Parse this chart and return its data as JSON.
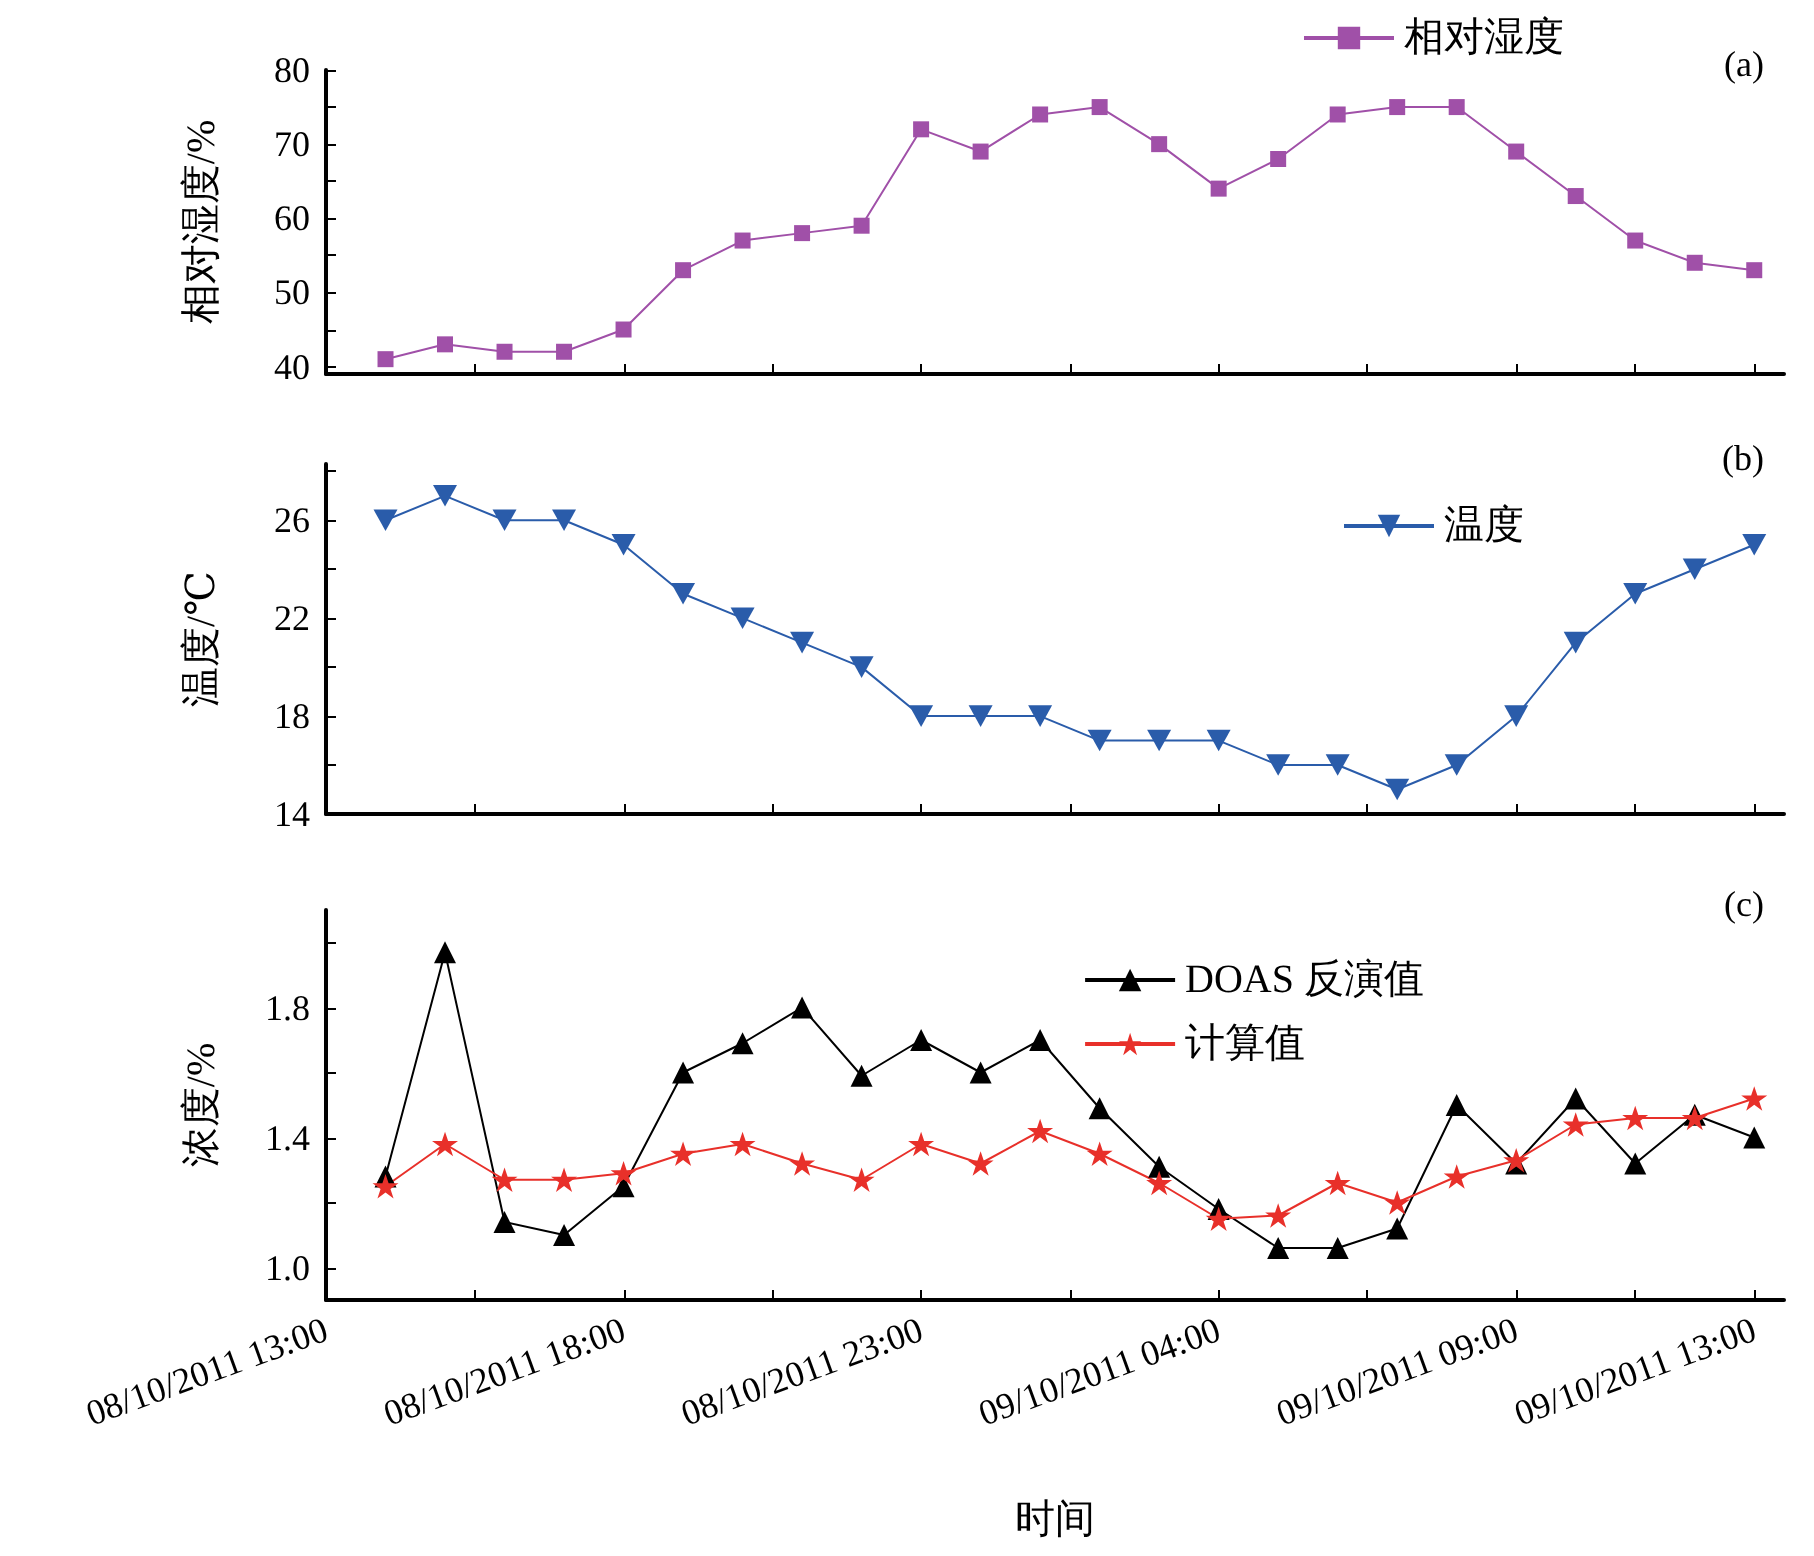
{
  "chart_data": [
    {
      "type": "line",
      "ylabel": "相对湿度/%",
      "annotations": [
        "(a)"
      ],
      "x": [
        "2011-10-08T14:00",
        "2011-10-08T15:00",
        "2011-10-08T16:00",
        "2011-10-08T17:00",
        "2011-10-08T18:00",
        "2011-10-08T19:00",
        "2011-10-08T20:00",
        "2011-10-08T21:00",
        "2011-10-08T22:00",
        "2011-10-08T23:00",
        "2011-10-09T00:00",
        "2011-10-09T01:00",
        "2011-10-09T02:00",
        "2011-10-09T03:00",
        "2011-10-09T04:00",
        "2011-10-09T05:00",
        "2011-10-09T06:00",
        "2011-10-09T07:00",
        "2011-10-09T08:00",
        "2011-10-09T09:00",
        "2011-10-09T10:00",
        "2011-10-09T11:00",
        "2011-10-09T12:00",
        "2011-10-09T13:00"
      ],
      "series": [
        {
          "name": "相对湿度",
          "color": "#a050a8",
          "marker": "square",
          "values": [
            41,
            43,
            42,
            42,
            45,
            53,
            57,
            58,
            59,
            72,
            69,
            74,
            75,
            70,
            64,
            68,
            74,
            75,
            75,
            69,
            63,
            57,
            54,
            53
          ]
        }
      ],
      "xlim": [
        "2011-10-08T13:00",
        "2011-10-09T13:30"
      ],
      "xticks": [
        {
          "value": "2011-10-08T13:00",
          "label": null
        },
        {
          "value": "2011-10-08T15:30",
          "label": null
        },
        {
          "value": "2011-10-08T18:00",
          "label": null
        },
        {
          "value": "2011-10-08T20:30",
          "label": null
        },
        {
          "value": "2011-10-08T23:00",
          "label": null
        },
        {
          "value": "2011-10-09T01:30",
          "label": null
        },
        {
          "value": "2011-10-09T04:00",
          "label": null
        },
        {
          "value": "2011-10-09T06:30",
          "label": null
        },
        {
          "value": "2011-10-09T09:00",
          "label": null
        },
        {
          "value": "2011-10-09T11:00",
          "label": null
        },
        {
          "value": "2011-10-09T13:00",
          "label": null
        }
      ],
      "ylim": [
        39,
        80
      ],
      "yticks": [
        40,
        {
          "value": 45,
          "label": null
        },
        50,
        {
          "value": 55,
          "label": null
        },
        60,
        {
          "value": 65,
          "label": null
        },
        70,
        {
          "value": 75,
          "label": null
        },
        80
      ],
      "tick_labels": "y",
      "legend": "top right",
      "grid": false
    },
    {
      "type": "line",
      "ylabel": "温度/℃",
      "annotations": [
        "(b)"
      ],
      "x": [
        "2011-10-08T14:00",
        "2011-10-08T15:00",
        "2011-10-08T16:00",
        "2011-10-08T17:00",
        "2011-10-08T18:00",
        "2011-10-08T19:00",
        "2011-10-08T20:00",
        "2011-10-08T21:00",
        "2011-10-08T22:00",
        "2011-10-08T23:00",
        "2011-10-09T00:00",
        "2011-10-09T01:00",
        "2011-10-09T02:00",
        "2011-10-09T03:00",
        "2011-10-09T04:00",
        "2011-10-09T05:00",
        "2011-10-09T06:00",
        "2011-10-09T07:00",
        "2011-10-09T08:00",
        "2011-10-09T09:00",
        "2011-10-09T10:00",
        "2011-10-09T11:00",
        "2011-10-09T12:00",
        "2011-10-09T13:00"
      ],
      "series": [
        {
          "name": "温度",
          "color": "#2a5caa",
          "marker": "triangle-down",
          "values": [
            26,
            27,
            26,
            26,
            25,
            23,
            22,
            21,
            20,
            18,
            18,
            18,
            17,
            17,
            17,
            16,
            16,
            15,
            16,
            18,
            21,
            23,
            24,
            25
          ]
        }
      ],
      "xlim": [
        "2011-10-08T13:00",
        "2011-10-09T13:30"
      ],
      "xticks": [
        {
          "value": "2011-10-08T13:00",
          "label": null
        },
        {
          "value": "2011-10-08T15:30",
          "label": null
        },
        {
          "value": "2011-10-08T18:00",
          "label": null
        },
        {
          "value": "2011-10-08T20:30",
          "label": null
        },
        {
          "value": "2011-10-08T23:00",
          "label": null
        },
        {
          "value": "2011-10-09T01:30",
          "label": null
        },
        {
          "value": "2011-10-09T04:00",
          "label": null
        },
        {
          "value": "2011-10-09T06:30",
          "label": null
        },
        {
          "value": "2011-10-09T09:00",
          "label": null
        },
        {
          "value": "2011-10-09T11:00",
          "label": null
        },
        {
          "value": "2011-10-09T13:00",
          "label": null
        }
      ],
      "ylim": [
        14,
        28.3
      ],
      "yticks": [
        14,
        {
          "value": 16,
          "label": null
        },
        18,
        {
          "value": 20,
          "label": null
        },
        22,
        {
          "value": 24,
          "label": null
        },
        26,
        {
          "value": 28,
          "label": null
        }
      ],
      "tick_labels": "y",
      "legend": "top right",
      "grid": false
    },
    {
      "type": "line",
      "ylabel": "浓度/%",
      "xlabel": "时间",
      "annotations": [
        "(c)"
      ],
      "x": [
        "2011-10-08T14:00",
        "2011-10-08T15:00",
        "2011-10-08T16:00",
        "2011-10-08T17:00",
        "2011-10-08T18:00",
        "2011-10-08T19:00",
        "2011-10-08T20:00",
        "2011-10-08T21:00",
        "2011-10-08T22:00",
        "2011-10-08T23:00",
        "2011-10-09T00:00",
        "2011-10-09T01:00",
        "2011-10-09T02:00",
        "2011-10-09T03:00",
        "2011-10-09T04:00",
        "2011-10-09T05:00",
        "2011-10-09T06:00",
        "2011-10-09T07:00",
        "2011-10-09T08:00",
        "2011-10-09T09:00",
        "2011-10-09T10:00",
        "2011-10-09T11:00",
        "2011-10-09T12:00",
        "2011-10-09T13:00"
      ],
      "series": [
        {
          "name": "DOAS 反演值",
          "color": "#000000",
          "marker": "triangle",
          "values": [
            1.28,
            1.97,
            1.14,
            1.1,
            1.25,
            1.6,
            1.69,
            1.8,
            1.59,
            1.7,
            1.6,
            1.7,
            1.49,
            1.31,
            1.18,
            1.06,
            1.06,
            1.12,
            1.5,
            1.32,
            1.52,
            1.32,
            1.47,
            1.4
          ]
        },
        {
          "name": "计算值",
          "color": "#e8302a",
          "marker": "star",
          "values": [
            1.25,
            1.38,
            1.27,
            1.27,
            1.29,
            1.35,
            1.38,
            1.32,
            1.27,
            1.38,
            1.32,
            1.42,
            1.35,
            1.26,
            1.15,
            1.16,
            1.26,
            1.2,
            1.28,
            1.33,
            1.44,
            1.46,
            1.46,
            1.52
          ]
        }
      ],
      "xlim": [
        "2011-10-08T13:00",
        "2011-10-09T13:30"
      ],
      "xticks": [
        {
          "value": "2011-10-08T13:00",
          "label": "08/10/2011 13:00"
        },
        {
          "value": "2011-10-08T15:30",
          "label": null
        },
        {
          "value": "2011-10-08T18:00",
          "label": "08/10/2011 18:00"
        },
        {
          "value": "2011-10-08T20:30",
          "label": null
        },
        {
          "value": "2011-10-08T23:00",
          "label": "08/10/2011 23:00"
        },
        {
          "value": "2011-10-09T01:30",
          "label": null
        },
        {
          "value": "2011-10-09T04:00",
          "label": "09/10/2011 04:00"
        },
        {
          "value": "2011-10-09T06:30",
          "label": null
        },
        {
          "value": "2011-10-09T09:00",
          "label": "09/10/2011 09:00"
        },
        {
          "value": "2011-10-09T11:00",
          "label": null
        },
        {
          "value": "2011-10-09T13:00",
          "label": "09/10/2011 13:00"
        }
      ],
      "ylim": [
        0.9,
        2.1
      ],
      "yticks": [
        {
          "value": 1.0,
          "label": "1.0"
        },
        {
          "value": 1.2,
          "label": null
        },
        1.4,
        {
          "value": 1.6,
          "label": null
        },
        1.8,
        {
          "value": 2.0,
          "label": null
        }
      ],
      "legend": "top right",
      "grid": false
    }
  ]
}
